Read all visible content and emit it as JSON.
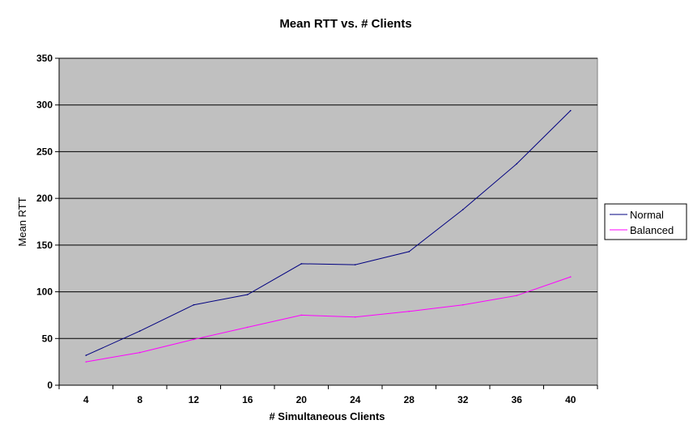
{
  "chart_data": {
    "type": "line",
    "title": "Mean RTT vs. # Clients",
    "xlabel": "# Simultaneous Clients",
    "ylabel": "Mean RTT",
    "categories": [
      "4",
      "8",
      "12",
      "16",
      "20",
      "24",
      "28",
      "32",
      "36",
      "40"
    ],
    "series": [
      {
        "name": "Normal",
        "color": "#000080",
        "values": [
          32,
          58,
          86,
          97,
          130,
          129,
          143,
          188,
          237,
          294
        ]
      },
      {
        "name": "Balanced",
        "color": "#ff00ff",
        "values": [
          25,
          35,
          49,
          62,
          75,
          73,
          79,
          86,
          96,
          116
        ]
      }
    ],
    "ylim": [
      0,
      350
    ],
    "yticks": [
      0,
      50,
      100,
      150,
      200,
      250,
      300,
      350
    ],
    "grid": true,
    "plot_background": "#c0c0c0",
    "legend_position": "right"
  }
}
